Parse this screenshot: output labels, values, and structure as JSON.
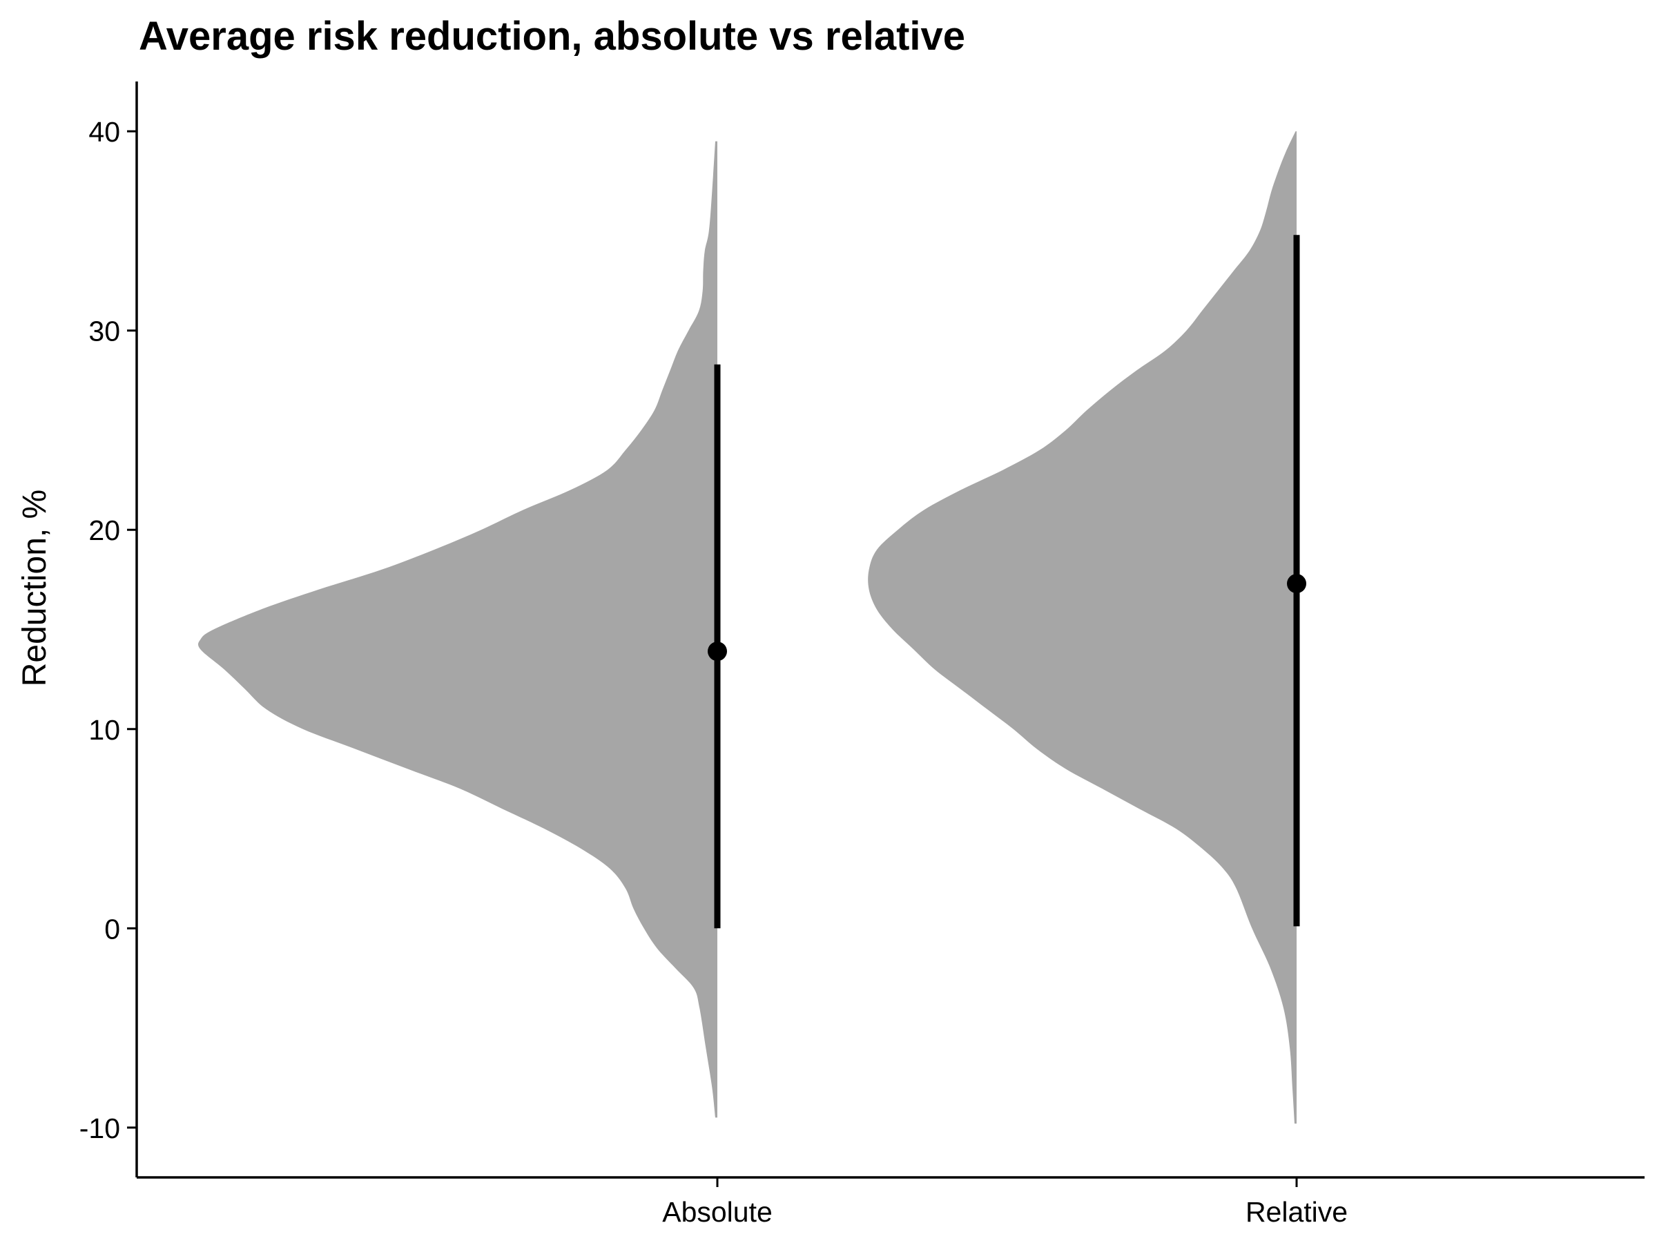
{
  "chart_data": {
    "type": "violin",
    "title": "Average risk reduction, absolute vs relative",
    "xlabel": "",
    "ylabel": "Reduction, %",
    "ylim": [
      -12.5,
      42.5
    ],
    "yticks": [
      -10,
      0,
      10,
      20,
      30,
      40
    ],
    "ytick_labels": [
      "-10",
      "0",
      "10",
      "20",
      "30",
      "40"
    ],
    "categories": [
      "Absolute",
      "Relative"
    ],
    "grid": false,
    "legend": "none",
    "colors": {
      "violin_fill": "#a6a6a6",
      "summary": "#000000",
      "axis": "#000000",
      "background": "#ffffff"
    },
    "series": [
      {
        "category": "Absolute",
        "point": 13.9,
        "interval": [
          0.0,
          28.3
        ],
        "density": [
          [
            -9.5,
            0.004
          ],
          [
            -8.0,
            0.01
          ],
          [
            -6.0,
            0.022
          ],
          [
            -4.0,
            0.034
          ],
          [
            -3.0,
            0.045
          ],
          [
            -2.0,
            0.08
          ],
          [
            -1.0,
            0.115
          ],
          [
            0.0,
            0.14
          ],
          [
            1.0,
            0.16
          ],
          [
            2.0,
            0.175
          ],
          [
            3.0,
            0.205
          ],
          [
            4.0,
            0.26
          ],
          [
            5.0,
            0.33
          ],
          [
            6.0,
            0.41
          ],
          [
            7.0,
            0.49
          ],
          [
            8.0,
            0.59
          ],
          [
            9.0,
            0.69
          ],
          [
            10.0,
            0.79
          ],
          [
            11.0,
            0.86
          ],
          [
            12.0,
            0.9
          ],
          [
            13.0,
            0.94
          ],
          [
            14.0,
            0.985
          ],
          [
            14.5,
            0.985
          ],
          [
            15.0,
            0.96
          ],
          [
            16.0,
            0.87
          ],
          [
            17.0,
            0.76
          ],
          [
            18.0,
            0.64
          ],
          [
            19.0,
            0.54
          ],
          [
            20.0,
            0.45
          ],
          [
            21.0,
            0.37
          ],
          [
            22.0,
            0.28
          ],
          [
            23.0,
            0.21
          ],
          [
            24.0,
            0.175
          ],
          [
            25.0,
            0.145
          ],
          [
            26.0,
            0.12
          ],
          [
            27.0,
            0.105
          ],
          [
            28.0,
            0.09
          ],
          [
            29.0,
            0.075
          ],
          [
            30.0,
            0.055
          ],
          [
            31.0,
            0.035
          ],
          [
            32.0,
            0.028
          ],
          [
            33.0,
            0.027
          ],
          [
            34.0,
            0.024
          ],
          [
            35.0,
            0.016
          ],
          [
            37.0,
            0.01
          ],
          [
            39.5,
            0.004
          ]
        ]
      },
      {
        "category": "Relative",
        "point": 17.3,
        "interval": [
          0.1,
          34.8
        ],
        "density": [
          [
            -9.8,
            0.004
          ],
          [
            -8.0,
            0.008
          ],
          [
            -6.0,
            0.013
          ],
          [
            -4.0,
            0.025
          ],
          [
            -2.0,
            0.05
          ],
          [
            0.0,
            0.085
          ],
          [
            2.0,
            0.115
          ],
          [
            3.0,
            0.14
          ],
          [
            4.0,
            0.18
          ],
          [
            5.0,
            0.23
          ],
          [
            6.0,
            0.3
          ],
          [
            7.0,
            0.37
          ],
          [
            8.0,
            0.44
          ],
          [
            9.0,
            0.495
          ],
          [
            10.0,
            0.54
          ],
          [
            11.0,
            0.59
          ],
          [
            12.0,
            0.64
          ],
          [
            13.0,
            0.69
          ],
          [
            14.0,
            0.73
          ],
          [
            15.0,
            0.77
          ],
          [
            16.0,
            0.8
          ],
          [
            17.0,
            0.815
          ],
          [
            18.0,
            0.815
          ],
          [
            19.0,
            0.8
          ],
          [
            20.0,
            0.76
          ],
          [
            21.0,
            0.71
          ],
          [
            22.0,
            0.64
          ],
          [
            23.0,
            0.56
          ],
          [
            24.0,
            0.49
          ],
          [
            25.0,
            0.44
          ],
          [
            26.0,
            0.4
          ],
          [
            27.0,
            0.355
          ],
          [
            28.0,
            0.305
          ],
          [
            29.0,
            0.25
          ],
          [
            30.0,
            0.21
          ],
          [
            31.0,
            0.18
          ],
          [
            32.0,
            0.15
          ],
          [
            33.0,
            0.12
          ],
          [
            34.0,
            0.09
          ],
          [
            35.0,
            0.07
          ],
          [
            36.0,
            0.058
          ],
          [
            37.0,
            0.048
          ],
          [
            38.0,
            0.035
          ],
          [
            39.0,
            0.02
          ],
          [
            40.0,
            0.002
          ]
        ]
      }
    ]
  }
}
